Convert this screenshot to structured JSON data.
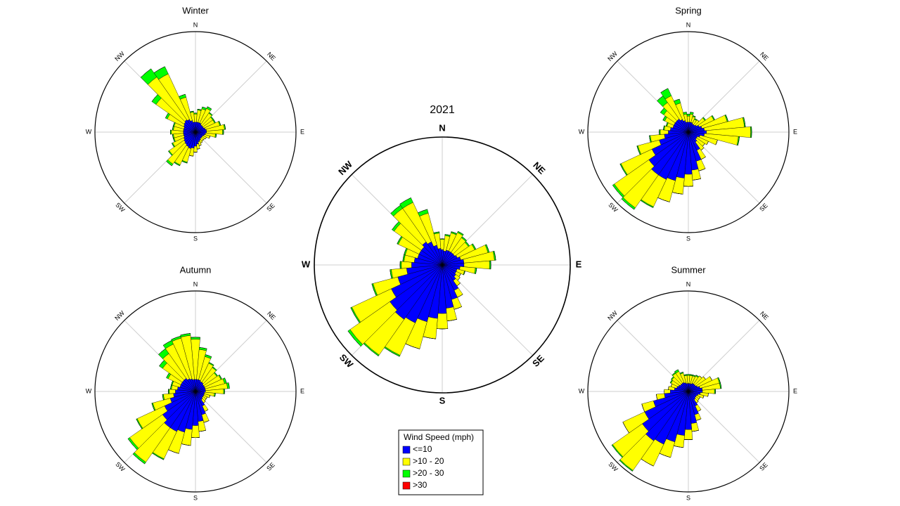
{
  "legend": {
    "title": "Wind Speed (mph)"
  },
  "chart_data": [
    {
      "type": "windrose",
      "title": "2021",
      "xlim": [
        0,
        360
      ],
      "rlim": [
        0,
        100
      ],
      "xticks": [
        {
          "value": 0,
          "label": "N"
        },
        {
          "value": 45,
          "label": "NE"
        },
        {
          "value": 90,
          "label": "E"
        },
        {
          "value": 135,
          "label": "SE"
        },
        {
          "value": 180,
          "label": "S"
        },
        {
          "value": 225,
          "label": "SW"
        },
        {
          "value": 270,
          "label": "W"
        },
        {
          "value": 315,
          "label": "NW"
        }
      ],
      "x": [
        0,
        10,
        20,
        30,
        40,
        50,
        60,
        70,
        80,
        90,
        100,
        110,
        120,
        130,
        140,
        150,
        160,
        170,
        180,
        190,
        200,
        210,
        220,
        230,
        240,
        250,
        260,
        270,
        280,
        290,
        300,
        310,
        320,
        330,
        340,
        350
      ],
      "series": [
        {
          "name": "<=10",
          "color": "#0000ff",
          "values": [
            12,
            11,
            12,
            12,
            12,
            12,
            13,
            15,
            17,
            17,
            14,
            12,
            12,
            13,
            15,
            22,
            28,
            34,
            38,
            42,
            46,
            50,
            52,
            50,
            44,
            36,
            28,
            24,
            22,
            20,
            20,
            20,
            22,
            20,
            16,
            13
          ]
        },
        {
          "name": ">10 - 20",
          "color": "#ffff00",
          "values": [
            8,
            12,
            14,
            16,
            14,
            13,
            15,
            22,
            24,
            20,
            12,
            6,
            4,
            4,
            5,
            6,
            8,
            10,
            12,
            16,
            22,
            28,
            34,
            38,
            34,
            20,
            12,
            8,
            8,
            10,
            18,
            26,
            32,
            34,
            26,
            12
          ]
        },
        {
          "name": ">20 - 30",
          "color": "#00ff00",
          "values": [
            0.5,
            1,
            1,
            1,
            1,
            1,
            1,
            1,
            1,
            1,
            1,
            0.5,
            0,
            0,
            0,
            0,
            0,
            0,
            0,
            0,
            0,
            1,
            1,
            2,
            1,
            1,
            1,
            1,
            1,
            1,
            1,
            2,
            3,
            4,
            3,
            1
          ]
        },
        {
          "name": ">30",
          "color": "#ff0000",
          "values": [
            0,
            0,
            0,
            0,
            0,
            0,
            0,
            0,
            0,
            0,
            0,
            0,
            0,
            0,
            0,
            0,
            0,
            0,
            0,
            0,
            0,
            0,
            0,
            0,
            0,
            0,
            0,
            0,
            0,
            0,
            0,
            0,
            0,
            0,
            0,
            0
          ]
        }
      ]
    },
    {
      "type": "windrose",
      "title": "Winter",
      "xlim": [
        0,
        360
      ],
      "rlim": [
        0,
        100
      ],
      "xticks": [
        {
          "value": 0,
          "label": "N"
        },
        {
          "value": 45,
          "label": "NE"
        },
        {
          "value": 90,
          "label": "E"
        },
        {
          "value": 135,
          "label": "SE"
        },
        {
          "value": 180,
          "label": "S"
        },
        {
          "value": 225,
          "label": "SW"
        },
        {
          "value": 270,
          "label": "W"
        },
        {
          "value": 315,
          "label": "NW"
        }
      ],
      "x": [
        0,
        10,
        20,
        30,
        40,
        50,
        60,
        70,
        80,
        90,
        100,
        110,
        120,
        130,
        140,
        150,
        160,
        170,
        180,
        190,
        200,
        210,
        220,
        230,
        240,
        250,
        260,
        270,
        280,
        290,
        300,
        310,
        320,
        330,
        340,
        350
      ],
      "series": [
        {
          "color": "#0000ff",
          "values": [
            10,
            10,
            10,
            10,
            9,
            9,
            9,
            10,
            11,
            11,
            10,
            9,
            8,
            8,
            8,
            9,
            10,
            12,
            14,
            16,
            17,
            16,
            15,
            14,
            13,
            12,
            12,
            12,
            12,
            12,
            13,
            14,
            15,
            14,
            12,
            10
          ]
        },
        {
          "color": "#ffff00",
          "values": [
            8,
            12,
            14,
            16,
            14,
            12,
            12,
            15,
            18,
            16,
            10,
            6,
            4,
            3,
            3,
            3,
            4,
            5,
            6,
            8,
            14,
            20,
            24,
            18,
            12,
            10,
            10,
            12,
            10,
            10,
            18,
            34,
            52,
            50,
            24,
            10
          ]
        },
        {
          "color": "#00ff00",
          "values": [
            1,
            1,
            2,
            2,
            1,
            1,
            1,
            1,
            1,
            1,
            1,
            0,
            0,
            0,
            0,
            0,
            0,
            0,
            0,
            0,
            1,
            1,
            2,
            1,
            1,
            1,
            1,
            1,
            1,
            1,
            2,
            5,
            10,
            8,
            3,
            1
          ]
        },
        {
          "color": "#ff0000",
          "values": [
            0,
            0,
            0,
            0,
            0,
            0,
            0,
            0,
            0,
            0,
            0,
            0,
            0,
            0,
            0,
            0,
            0,
            0,
            0,
            0,
            0,
            0,
            0,
            0,
            0,
            0,
            0,
            0,
            0,
            0,
            0,
            0,
            0,
            0,
            0,
            0
          ]
        }
      ]
    },
    {
      "type": "windrose",
      "title": "Spring",
      "xlim": [
        0,
        360
      ],
      "rlim": [
        0,
        100
      ],
      "xticks": [
        {
          "value": 0,
          "label": "N"
        },
        {
          "value": 45,
          "label": "NE"
        },
        {
          "value": 90,
          "label": "E"
        },
        {
          "value": 135,
          "label": "SE"
        },
        {
          "value": 180,
          "label": "S"
        },
        {
          "value": 225,
          "label": "SW"
        },
        {
          "value": 270,
          "label": "W"
        },
        {
          "value": 315,
          "label": "NW"
        }
      ],
      "x": [
        0,
        10,
        20,
        30,
        40,
        50,
        60,
        70,
        80,
        90,
        100,
        110,
        120,
        130,
        140,
        150,
        160,
        170,
        180,
        190,
        200,
        210,
        220,
        230,
        240,
        250,
        260,
        270,
        280,
        290,
        300,
        310,
        320,
        330,
        340,
        350
      ],
      "series": [
        {
          "color": "#0000ff",
          "values": [
            10,
            10,
            10,
            9,
            9,
            10,
            12,
            14,
            16,
            18,
            16,
            12,
            10,
            10,
            12,
            20,
            30,
            38,
            42,
            46,
            50,
            52,
            52,
            48,
            40,
            30,
            24,
            20,
            18,
            16,
            16,
            16,
            16,
            14,
            12,
            10
          ]
        },
        {
          "color": "#ffff00",
          "values": [
            6,
            8,
            6,
            5,
            6,
            10,
            16,
            26,
            40,
            44,
            34,
            18,
            12,
            10,
            10,
            10,
            10,
            10,
            12,
            16,
            22,
            30,
            40,
            42,
            34,
            22,
            14,
            8,
            6,
            6,
            10,
            14,
            20,
            26,
            18,
            8
          ]
        },
        {
          "color": "#00ff00",
          "values": [
            2,
            2,
            1,
            1,
            0,
            1,
            1,
            1,
            1,
            1,
            1,
            0,
            0,
            0,
            0,
            0,
            0,
            0,
            0,
            0,
            0,
            1,
            2,
            2,
            1,
            1,
            1,
            1,
            1,
            1,
            2,
            4,
            8,
            8,
            4,
            2
          ]
        },
        {
          "color": "#ff0000",
          "values": [
            0,
            0,
            0,
            0,
            0,
            0,
            0,
            0,
            0,
            0,
            0,
            0,
            0,
            0,
            0,
            0,
            0,
            0,
            0,
            0,
            0,
            0,
            0,
            0,
            0,
            0,
            0,
            0,
            0,
            0,
            0,
            0,
            0,
            0,
            0,
            0
          ]
        }
      ]
    },
    {
      "type": "windrose",
      "title": "Autumn",
      "xlim": [
        0,
        360
      ],
      "rlim": [
        0,
        100
      ],
      "xticks": [
        {
          "value": 0,
          "label": "N"
        },
        {
          "value": 45,
          "label": "NE"
        },
        {
          "value": 90,
          "label": "E"
        },
        {
          "value": 135,
          "label": "SE"
        },
        {
          "value": 180,
          "label": "S"
        },
        {
          "value": 225,
          "label": "SW"
        },
        {
          "value": 270,
          "label": "W"
        },
        {
          "value": 315,
          "label": "NW"
        }
      ],
      "x": [
        0,
        10,
        20,
        30,
        40,
        50,
        60,
        70,
        80,
        90,
        100,
        110,
        120,
        130,
        140,
        150,
        160,
        170,
        180,
        190,
        200,
        210,
        220,
        230,
        240,
        250,
        260,
        270,
        280,
        290,
        300,
        310,
        320,
        330,
        340,
        350
      ],
      "series": [
        {
          "color": "#0000ff",
          "values": [
            12,
            12,
            12,
            11,
            11,
            10,
            10,
            10,
            10,
            10,
            9,
            9,
            9,
            9,
            10,
            16,
            24,
            30,
            34,
            38,
            42,
            44,
            44,
            40,
            34,
            26,
            22,
            20,
            18,
            16,
            16,
            16,
            16,
            14,
            13,
            12
          ]
        },
        {
          "color": "#ffff00",
          "values": [
            40,
            30,
            24,
            20,
            18,
            16,
            18,
            20,
            22,
            18,
            10,
            6,
            4,
            4,
            4,
            6,
            8,
            10,
            12,
            16,
            22,
            30,
            42,
            40,
            30,
            18,
            10,
            6,
            6,
            8,
            14,
            24,
            30,
            38,
            42,
            44
          ]
        },
        {
          "color": "#00ff00",
          "values": [
            2,
            2,
            2,
            1,
            1,
            1,
            1,
            2,
            2,
            1,
            1,
            0,
            0,
            0,
            0,
            0,
            0,
            0,
            0,
            0,
            0,
            1,
            2,
            2,
            1,
            1,
            1,
            1,
            1,
            1,
            2,
            4,
            6,
            4,
            2,
            2
          ]
        },
        {
          "color": "#ff0000",
          "values": [
            0,
            0,
            0,
            0,
            0,
            0,
            0,
            0,
            0,
            0,
            0,
            0,
            0,
            0,
            0,
            0,
            0,
            0,
            0,
            0,
            0,
            0,
            0,
            0,
            0,
            0,
            0,
            0,
            0,
            0,
            0,
            0,
            0,
            0,
            0,
            0
          ]
        }
      ]
    },
    {
      "type": "windrose",
      "title": "Summer",
      "xlim": [
        0,
        360
      ],
      "rlim": [
        0,
        100
      ],
      "xticks": [
        {
          "value": 0,
          "label": "N"
        },
        {
          "value": 45,
          "label": "NE"
        },
        {
          "value": 90,
          "label": "E"
        },
        {
          "value": 135,
          "label": "SE"
        },
        {
          "value": 180,
          "label": "S"
        },
        {
          "value": 225,
          "label": "SW"
        },
        {
          "value": 270,
          "label": "W"
        },
        {
          "value": 315,
          "label": "NW"
        }
      ],
      "x": [
        0,
        10,
        20,
        30,
        40,
        50,
        60,
        70,
        80,
        90,
        100,
        110,
        120,
        130,
        140,
        150,
        160,
        170,
        180,
        190,
        200,
        210,
        220,
        230,
        240,
        250,
        260,
        270,
        280,
        290,
        300,
        310,
        320,
        330,
        340,
        350
      ],
      "series": [
        {
          "color": "#0000ff",
          "values": [
            8,
            8,
            8,
            9,
            9,
            9,
            10,
            12,
            14,
            14,
            12,
            10,
            9,
            9,
            10,
            16,
            24,
            32,
            38,
            44,
            52,
            58,
            60,
            56,
            48,
            36,
            24,
            18,
            14,
            12,
            11,
            10,
            10,
            10,
            9,
            8
          ]
        },
        {
          "color": "#ffff00",
          "values": [
            8,
            8,
            8,
            8,
            10,
            12,
            16,
            20,
            18,
            12,
            8,
            6,
            4,
            4,
            4,
            6,
            6,
            8,
            10,
            12,
            16,
            24,
            36,
            36,
            24,
            12,
            8,
            6,
            6,
            6,
            8,
            10,
            12,
            12,
            10,
            8
          ]
        },
        {
          "color": "#00ff00",
          "values": [
            1,
            1,
            1,
            1,
            0,
            0,
            0,
            1,
            1,
            1,
            0,
            0,
            0,
            0,
            0,
            0,
            0,
            0,
            0,
            0,
            0,
            0,
            1,
            1,
            0,
            0,
            0,
            0,
            0,
            0,
            1,
            1,
            1,
            2,
            1,
            1
          ]
        },
        {
          "color": "#ff0000",
          "values": [
            0,
            0,
            0,
            0,
            0,
            0,
            0,
            0,
            0,
            0,
            0,
            0,
            0,
            0,
            0,
            0,
            0,
            0,
            0,
            0,
            0,
            0,
            0,
            0,
            0,
            0,
            0,
            0,
            0,
            0,
            0,
            0,
            0,
            0,
            0,
            0
          ]
        }
      ]
    }
  ]
}
